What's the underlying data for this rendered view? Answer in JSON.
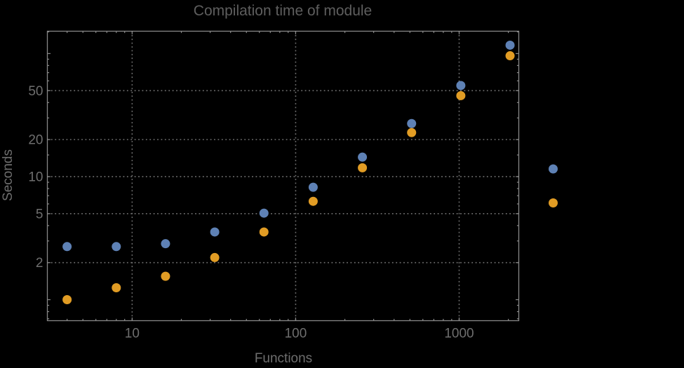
{
  "chart_data": {
    "type": "scatter",
    "title": "Compilation time of module",
    "xlabel": "Functions",
    "ylabel": "Seconds",
    "x_scale": "log",
    "y_scale": "log",
    "x_range": [
      3.03,
      2316
    ],
    "y_range": [
      0.675,
      152
    ],
    "grid": "dotted",
    "legend_position": "outside-right",
    "legend_labels_visible": false,
    "x_gridlines": [
      10,
      100,
      1000
    ],
    "y_gridlines": [
      2,
      5,
      10,
      20,
      50
    ],
    "x_tick_labels": [
      "10",
      "100",
      "1000"
    ],
    "y_tick_labels": [
      "2",
      "5",
      "10",
      "20",
      "50"
    ],
    "x_major_ticks": [
      10,
      100,
      1000
    ],
    "x_minor_ticks": [
      4,
      5,
      6,
      7,
      8,
      9,
      20,
      30,
      40,
      50,
      60,
      70,
      80,
      90,
      200,
      300,
      400,
      500,
      600,
      700,
      800,
      900,
      2000
    ],
    "y_major_ticks": [
      1,
      2,
      5,
      10,
      20,
      50,
      100
    ],
    "y_minor_ticks": [
      0.7,
      0.8,
      0.9,
      3,
      4,
      6,
      7,
      8,
      9,
      15,
      30,
      40,
      60,
      70,
      80,
      90,
      150
    ],
    "x": [
      4,
      8,
      16,
      32,
      64,
      128,
      256,
      512,
      1024,
      2048
    ],
    "series": [
      {
        "name": "series-blue",
        "color": "#5E81B5",
        "values": [
          2.7,
          2.7,
          2.85,
          3.55,
          5.05,
          8.2,
          14.4,
          27,
          55,
          117
        ]
      },
      {
        "name": "series-orange",
        "color": "#E19C24",
        "values": [
          1.0,
          1.25,
          1.55,
          2.2,
          3.55,
          6.3,
          11.8,
          22.8,
          45.5,
          96
        ]
      }
    ]
  },
  "colors": {
    "background": "#000000",
    "frame": "#888888",
    "gridline": "#707070",
    "tick_text": "#6e6e6e",
    "title_text": "#5e5e5e",
    "series_blue": "#5E81B5",
    "series_orange": "#E19C24"
  }
}
